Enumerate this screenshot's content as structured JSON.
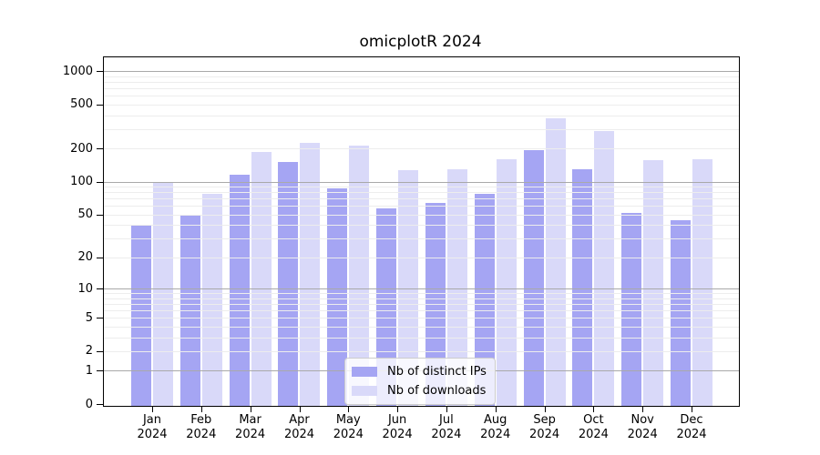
{
  "title": "omicplotR 2024",
  "chart_data": {
    "type": "bar",
    "title": "omicplotR 2024",
    "y_scale": "log1p",
    "categories": [
      "Jan",
      "Feb",
      "Mar",
      "Apr",
      "May",
      "Jun",
      "Jul",
      "Aug",
      "Sep",
      "Oct",
      "Nov",
      "Dec"
    ],
    "year_label": "2024",
    "series": [
      {
        "name": "Nb of distinct IPs",
        "color": "#a5a5f3",
        "values": [
          40,
          50,
          115,
          150,
          86,
          57,
          64,
          78,
          193,
          130,
          52,
          44
        ]
      },
      {
        "name": "Nb of downloads",
        "color": "#d9d9f9",
        "values": [
          100,
          78,
          185,
          225,
          212,
          128,
          130,
          160,
          372,
          288,
          156,
          160
        ]
      }
    ],
    "y_tick_labels": [
      0,
      1,
      2,
      5,
      10,
      20,
      50,
      100,
      200,
      500,
      1000
    ],
    "gridlines": {
      "minor": [
        2,
        3,
        4,
        5,
        6,
        7,
        8,
        9,
        20,
        30,
        40,
        50,
        60,
        70,
        80,
        90,
        200,
        300,
        400,
        500,
        600,
        700,
        800,
        900
      ],
      "major": [
        1,
        10,
        100,
        1000
      ]
    },
    "ylim": [
      0,
      1350
    ],
    "xlabel": "",
    "ylabel": "",
    "legend_position": "bottom-center",
    "grid": true
  },
  "colors": {
    "minor_grid": "#ededed",
    "major_grid": "#a9a9a9",
    "axis": "#000000",
    "background": "#ffffff",
    "legend_border": "#cccccc"
  }
}
